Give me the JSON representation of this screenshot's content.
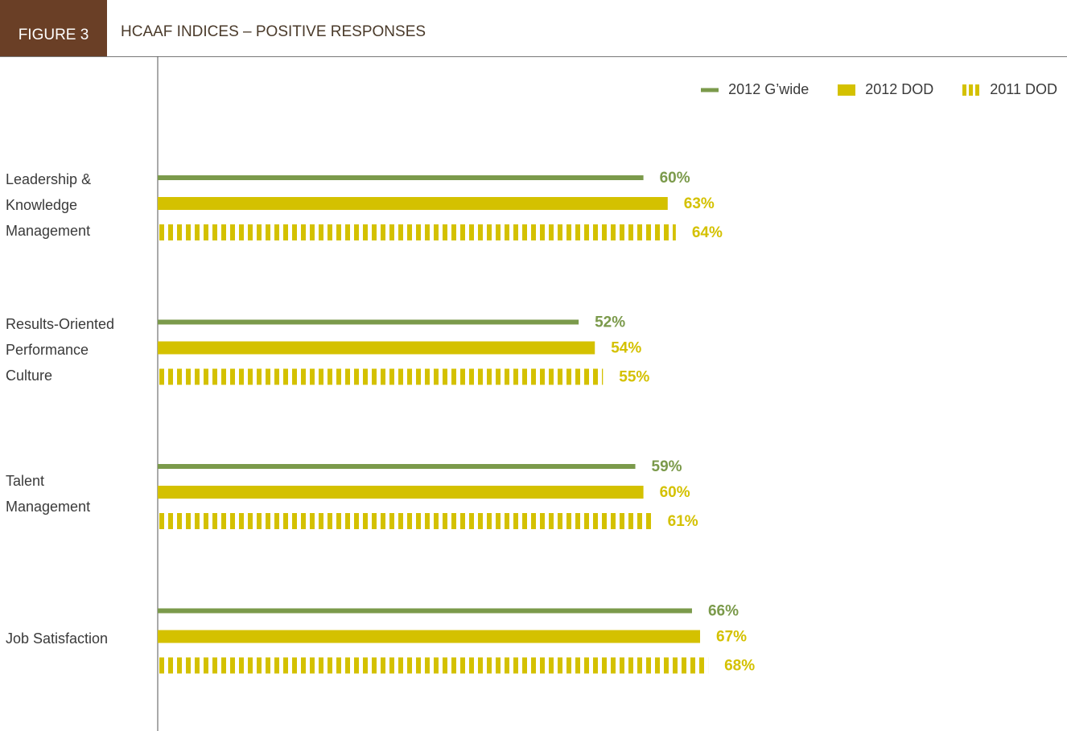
{
  "chart_data": {
    "type": "hbar",
    "figure_label": "FIGURE 3",
    "title": "HCAAF INDICES – POSITIVE RESPONSES",
    "categories": [
      "Leadership & Knowledge Management",
      "Results-Oriented Performance Culture",
      "Talent Management",
      "Job Satisfaction"
    ],
    "xlim": [
      0,
      100
    ],
    "legend": "top-right",
    "series": [
      {
        "name": "2012 G’wide",
        "color": "#7b9a4b",
        "style": "thin",
        "values": [
          60,
          52,
          59,
          66
        ],
        "value_labels": [
          "60%",
          "52%",
          "59%",
          "66%"
        ]
      },
      {
        "name": "2012 DOD",
        "color": "#d4c100",
        "style": "solid",
        "values": [
          63,
          54,
          60,
          67
        ],
        "value_labels": [
          "63%",
          "54%",
          "60%",
          "67%"
        ]
      },
      {
        "name": "2011 DOD",
        "color": "#d4c100",
        "style": "striped",
        "values": [
          64,
          55,
          61,
          68
        ],
        "value_labels": [
          "64%",
          "55%",
          "61%",
          "68%"
        ]
      }
    ]
  }
}
